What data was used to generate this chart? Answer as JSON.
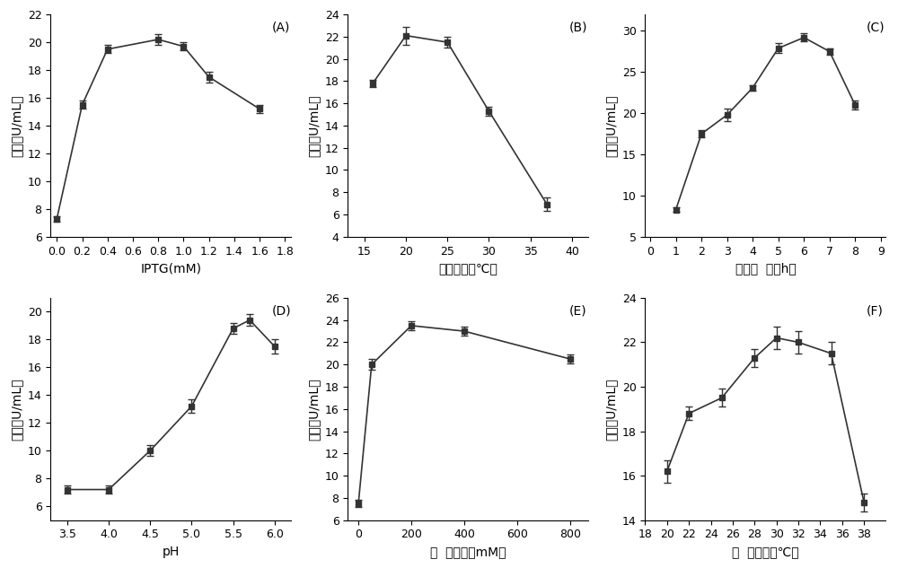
{
  "subplots": [
    {
      "label": "(A)",
      "xlabel": "IPTG(mM)",
      "ylabel": "活力（U/mL）",
      "x": [
        0.0,
        0.2,
        0.4,
        0.8,
        1.0,
        1.2,
        1.6
      ],
      "y": [
        7.3,
        15.5,
        19.5,
        20.2,
        19.7,
        17.5,
        15.2
      ],
      "yerr": [
        0.2,
        0.3,
        0.3,
        0.4,
        0.3,
        0.4,
        0.3
      ],
      "xlim": [
        -0.05,
        1.85
      ],
      "ylim": [
        6,
        22
      ],
      "xticks": [
        0.0,
        0.2,
        0.4,
        0.6,
        0.8,
        1.0,
        1.2,
        1.4,
        1.6,
        1.8
      ],
      "yticks": [
        6,
        8,
        10,
        12,
        14,
        16,
        18,
        20,
        22
      ]
    },
    {
      "label": "(B)",
      "xlabel": "诱导温度（℃）",
      "ylabel": "活力（U/mL）",
      "x": [
        16,
        20,
        25,
        30,
        37
      ],
      "y": [
        17.8,
        22.1,
        21.5,
        15.3,
        6.9
      ],
      "yerr": [
        0.3,
        0.8,
        0.5,
        0.4,
        0.6
      ],
      "xlim": [
        13,
        42
      ],
      "ylim": [
        4,
        24
      ],
      "xticks": [
        15,
        20,
        25,
        30,
        35,
        40
      ],
      "yticks": [
        4,
        6,
        8,
        10,
        12,
        14,
        16,
        18,
        20,
        22,
        24
      ]
    },
    {
      "label": "(C)",
      "xlabel": "诱导时间（h）",
      "ylabel": "活力（U/mL）",
      "x": [
        1,
        2,
        3,
        4,
        5,
        6,
        7,
        8
      ],
      "y": [
        8.3,
        17.5,
        19.8,
        23.1,
        27.9,
        29.2,
        27.5,
        21.0
      ],
      "yerr": [
        0.3,
        0.4,
        0.8,
        0.3,
        0.6,
        0.5,
        0.4,
        0.5
      ],
      "xlim": [
        -0.2,
        9.2
      ],
      "ylim": [
        5,
        32
      ],
      "xticks": [
        0,
        1,
        2,
        3,
        4,
        5,
        6,
        7,
        8,
        9
      ],
      "yticks": [
        5,
        10,
        15,
        20,
        25,
        30
      ]
    },
    {
      "label": "(D)",
      "xlabel": "pH",
      "ylabel": "活力（U/mL）",
      "x": [
        3.5,
        4.0,
        4.5,
        5.0,
        5.5,
        5.7,
        6.0
      ],
      "y": [
        7.2,
        7.2,
        10.0,
        13.2,
        18.8,
        19.4,
        17.5
      ],
      "yerr": [
        0.3,
        0.3,
        0.4,
        0.5,
        0.4,
        0.4,
        0.5
      ],
      "xlim": [
        3.3,
        6.2
      ],
      "ylim": [
        5,
        21
      ],
      "xticks": [
        3.5,
        4.0,
        4.5,
        5.0,
        5.5,
        6.0
      ],
      "yticks": [
        6,
        8,
        10,
        12,
        14,
        16,
        18,
        20
      ]
    },
    {
      "label": "(E)",
      "xlabel": "底物浓度（mM）",
      "ylabel": "活力（U/mL）",
      "x": [
        0,
        50,
        200,
        400,
        800
      ],
      "y": [
        7.5,
        20.0,
        23.5,
        23.0,
        20.5
      ],
      "yerr": [
        0.3,
        0.5,
        0.4,
        0.4,
        0.4
      ],
      "xlim": [
        -40,
        870
      ],
      "ylim": [
        6,
        26
      ],
      "xticks": [
        0,
        200,
        400,
        600,
        800
      ],
      "yticks": [
        6,
        8,
        10,
        12,
        14,
        16,
        18,
        20,
        22,
        24,
        26
      ]
    },
    {
      "label": "(F)",
      "xlabel": "反应温度（℃）",
      "ylabel": "活力（U/mL）",
      "x": [
        20,
        22,
        25,
        28,
        30,
        32,
        35,
        38
      ],
      "y": [
        16.2,
        18.8,
        19.5,
        21.3,
        22.2,
        22.0,
        21.5,
        14.8
      ],
      "yerr": [
        0.5,
        0.3,
        0.4,
        0.4,
        0.5,
        0.5,
        0.5,
        0.4
      ],
      "xlim": [
        18,
        40
      ],
      "ylim": [
        14,
        24
      ],
      "xticks": [
        18,
        20,
        22,
        24,
        26,
        28,
        30,
        32,
        34,
        36,
        38
      ],
      "yticks": [
        14,
        16,
        18,
        20,
        22,
        24
      ]
    }
  ],
  "marker": "s",
  "markersize": 5,
  "linewidth": 1.2,
  "color": "#333333",
  "capsize": 3,
  "elinewidth": 1.0,
  "fontsize_label": 10,
  "fontsize_tick": 9,
  "fontsize_panel": 10,
  "xlabel_spacing": {
    "A": "IPTG(mM)",
    "B": "诱导温度（℃）",
    "C": "诱导时  间（h）",
    "D": "pH",
    "E": "底  物浓度（mM）",
    "F": "反  应温度（℃）"
  }
}
